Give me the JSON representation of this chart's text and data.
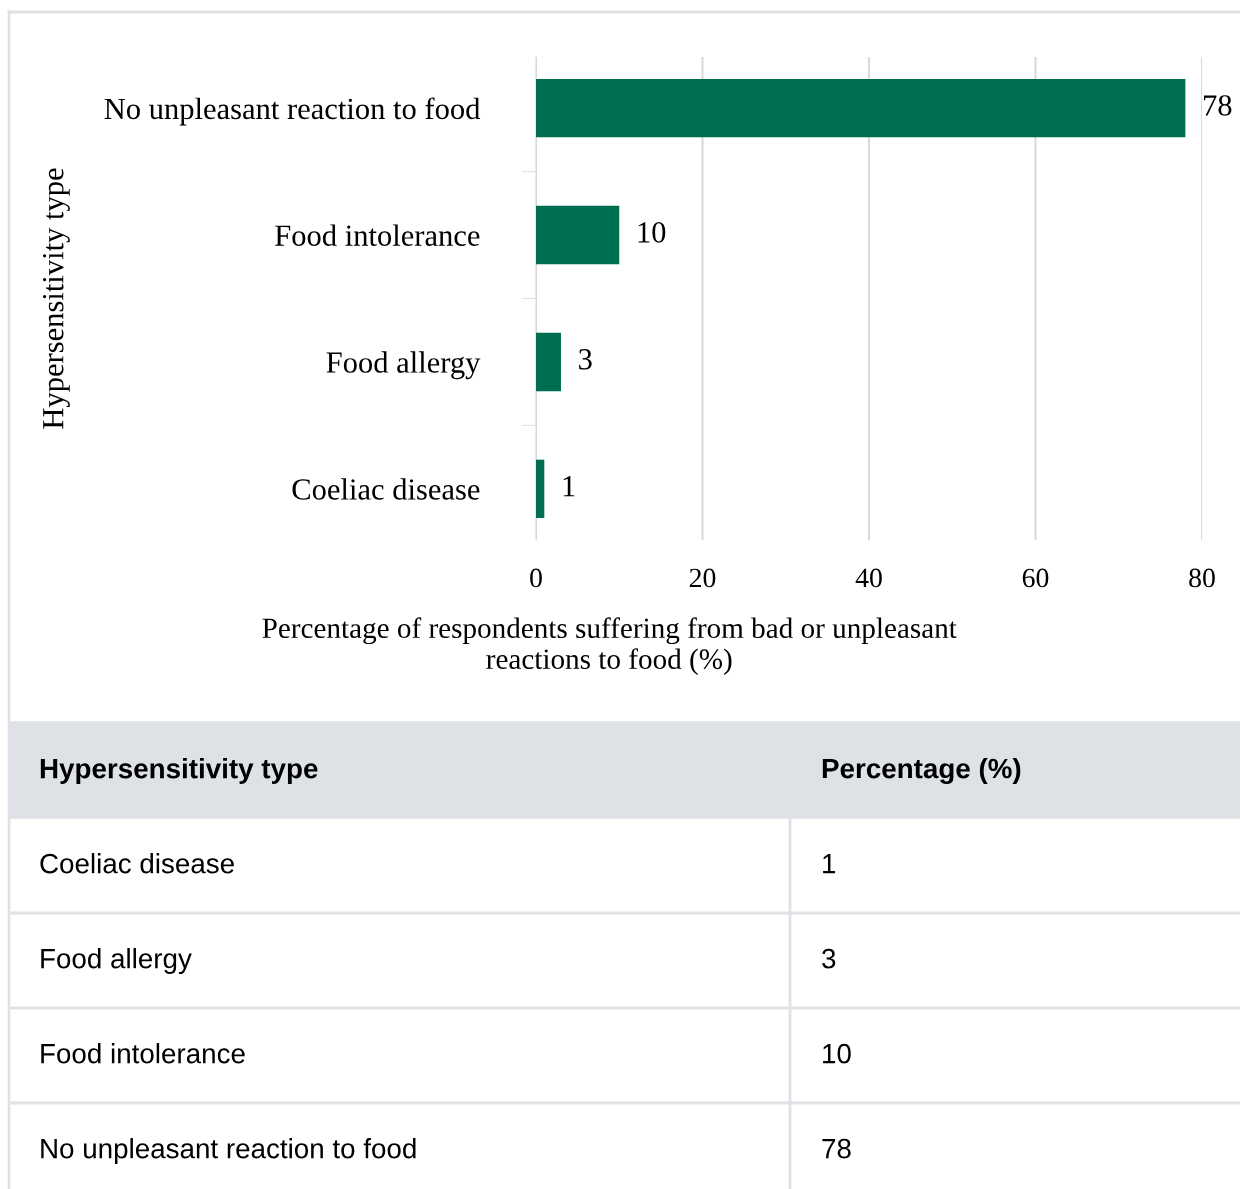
{
  "chart_data": {
    "type": "bar",
    "orientation": "horizontal",
    "categories": [
      "No unpleasant reaction to food",
      "Food intolerance",
      "Food allergy",
      "Coeliac disease"
    ],
    "values": [
      78,
      10,
      3,
      1
    ],
    "color": "#006f51",
    "xlim": [
      0,
      80
    ],
    "xticks": [
      0,
      20,
      40,
      60,
      80
    ],
    "grid": "x",
    "data_labels": true,
    "ylabel": "Hypersensitivity type",
    "xlabel": "Percentage of respondents suffering from bad or unpleasant\nreactions to food (%)",
    "annotations": [
      "Hypersensitivity type",
      "Percentage (%)",
      "1",
      "3",
      "10",
      "78"
    ]
  }
}
